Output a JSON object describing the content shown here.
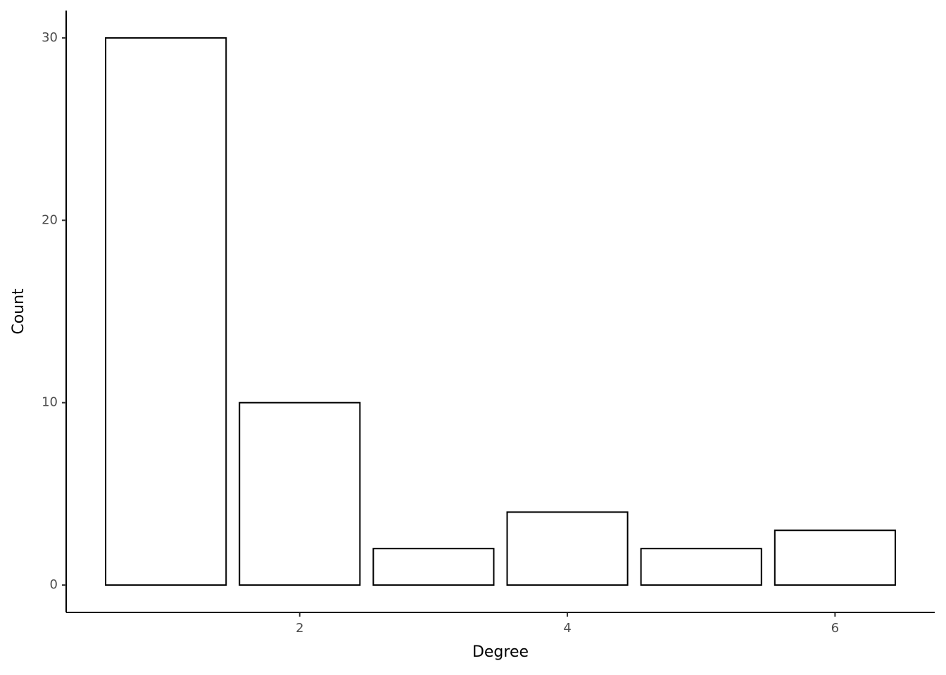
{
  "chart_data": {
    "type": "bar",
    "x_label": "Degree",
    "y_label": "Count",
    "x": [
      1,
      2,
      3,
      4,
      5,
      6
    ],
    "values": [
      30,
      10,
      2,
      4,
      2,
      3
    ],
    "color": "#ffffff",
    "edgecolor": "#000000",
    "xlim": [
      0.255,
      6.745
    ],
    "xticks": [
      2,
      4,
      6
    ],
    "ylim": [
      -1.5,
      31.5
    ],
    "yticks": [
      0,
      10,
      20,
      30
    ],
    "grid": false
  }
}
